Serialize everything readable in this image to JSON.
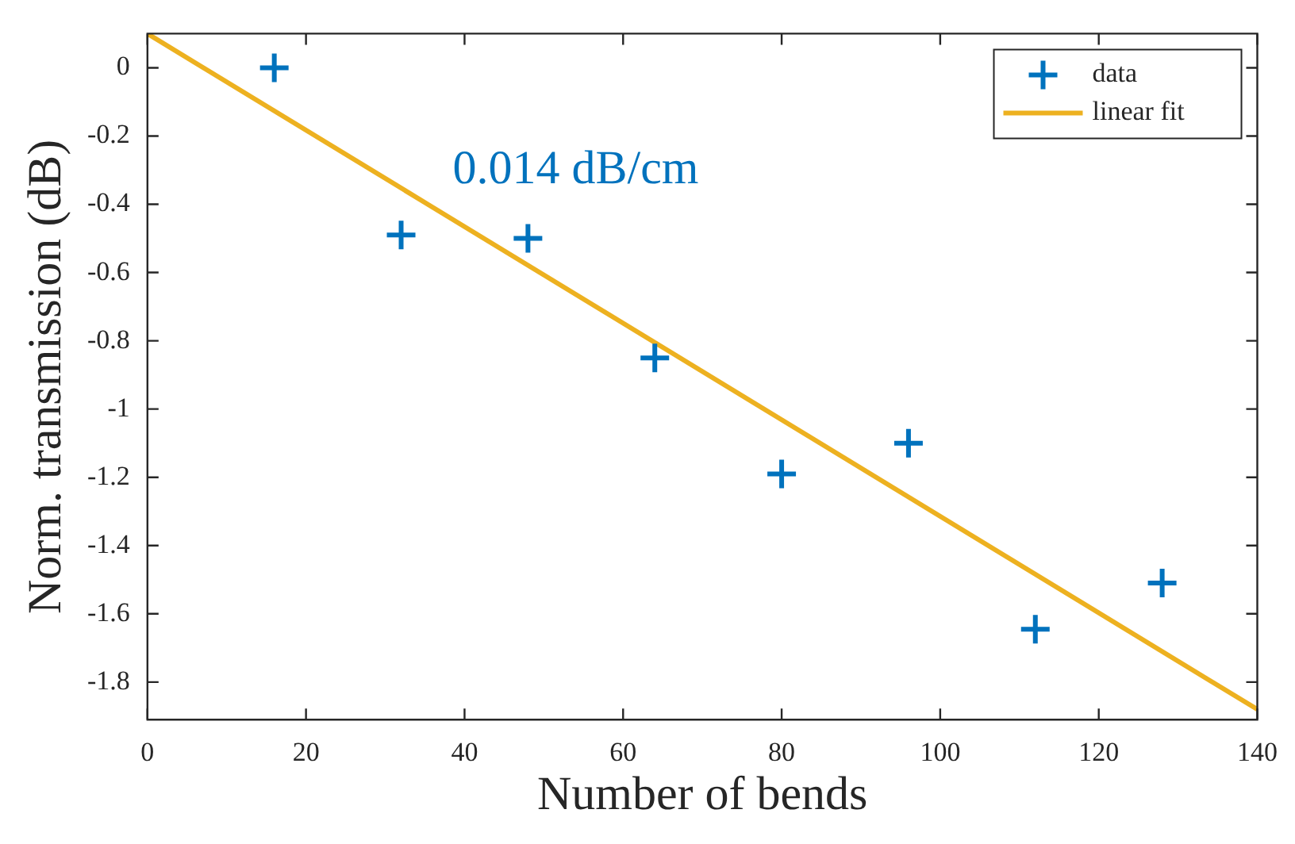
{
  "chart_data": {
    "type": "scatter",
    "xlabel": "Number of bends",
    "ylabel": "Norm. transmission (dB)",
    "annotations": [
      "0.014 dB/cm"
    ],
    "xlim": [
      0,
      140
    ],
    "xticks": [
      0,
      20,
      40,
      60,
      80,
      100,
      120,
      140
    ],
    "ylim": [
      -1.91,
      0.1
    ],
    "yticks": [
      -1.8,
      -1.6,
      -1.4,
      -1.2,
      -1,
      -0.8,
      -0.6,
      -0.4,
      -0.2,
      0
    ],
    "grid": false,
    "legend": "top right",
    "series": [
      {
        "name": "data",
        "marker": "cross",
        "color": "#0072bd",
        "x": [
          16,
          32,
          48,
          64,
          80,
          96,
          112,
          128
        ],
        "values": [
          0,
          -0.49,
          -0.5,
          -0.85,
          -1.19,
          -1.1,
          -1.645,
          -1.51
        ]
      },
      {
        "name": "linear fit",
        "type": "line",
        "marker": "none",
        "color": "#edb120",
        "x": [
          0,
          140
        ],
        "values": [
          0.1,
          -1.88
        ]
      }
    ]
  }
}
